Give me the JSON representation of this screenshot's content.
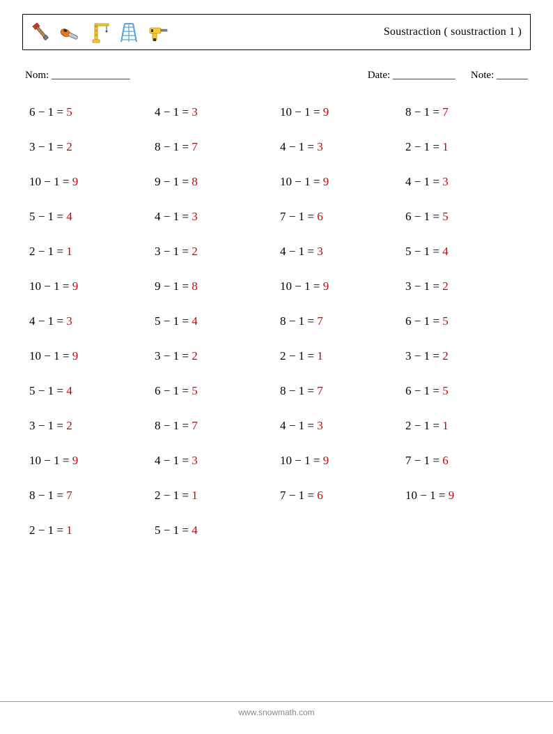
{
  "header": {
    "title": "Soustraction ( soustraction 1 )"
  },
  "info": {
    "nom_label": "Nom: _______________",
    "date_label": "Date: ____________",
    "note_label": "Note: ______"
  },
  "colors": {
    "problem": "#000000",
    "answer": "#d40000",
    "border": "#000000",
    "footer_line": "#999999",
    "footer_text": "#888888"
  },
  "grid": {
    "columns": 4,
    "rows": 13,
    "operator": "−",
    "equals": "=",
    "subtrahend": 1,
    "problems": [
      [
        6,
        4,
        10,
        8
      ],
      [
        3,
        8,
        4,
        2
      ],
      [
        10,
        9,
        10,
        4
      ],
      [
        5,
        4,
        7,
        6
      ],
      [
        2,
        3,
        4,
        5
      ],
      [
        10,
        9,
        10,
        3
      ],
      [
        4,
        5,
        8,
        6
      ],
      [
        10,
        3,
        2,
        3
      ],
      [
        5,
        6,
        8,
        6
      ],
      [
        3,
        8,
        4,
        2
      ],
      [
        10,
        4,
        10,
        7
      ],
      [
        8,
        2,
        7,
        10
      ],
      [
        2,
        5,
        null,
        null
      ]
    ]
  },
  "footer": {
    "text": "www.snowmath.com"
  }
}
